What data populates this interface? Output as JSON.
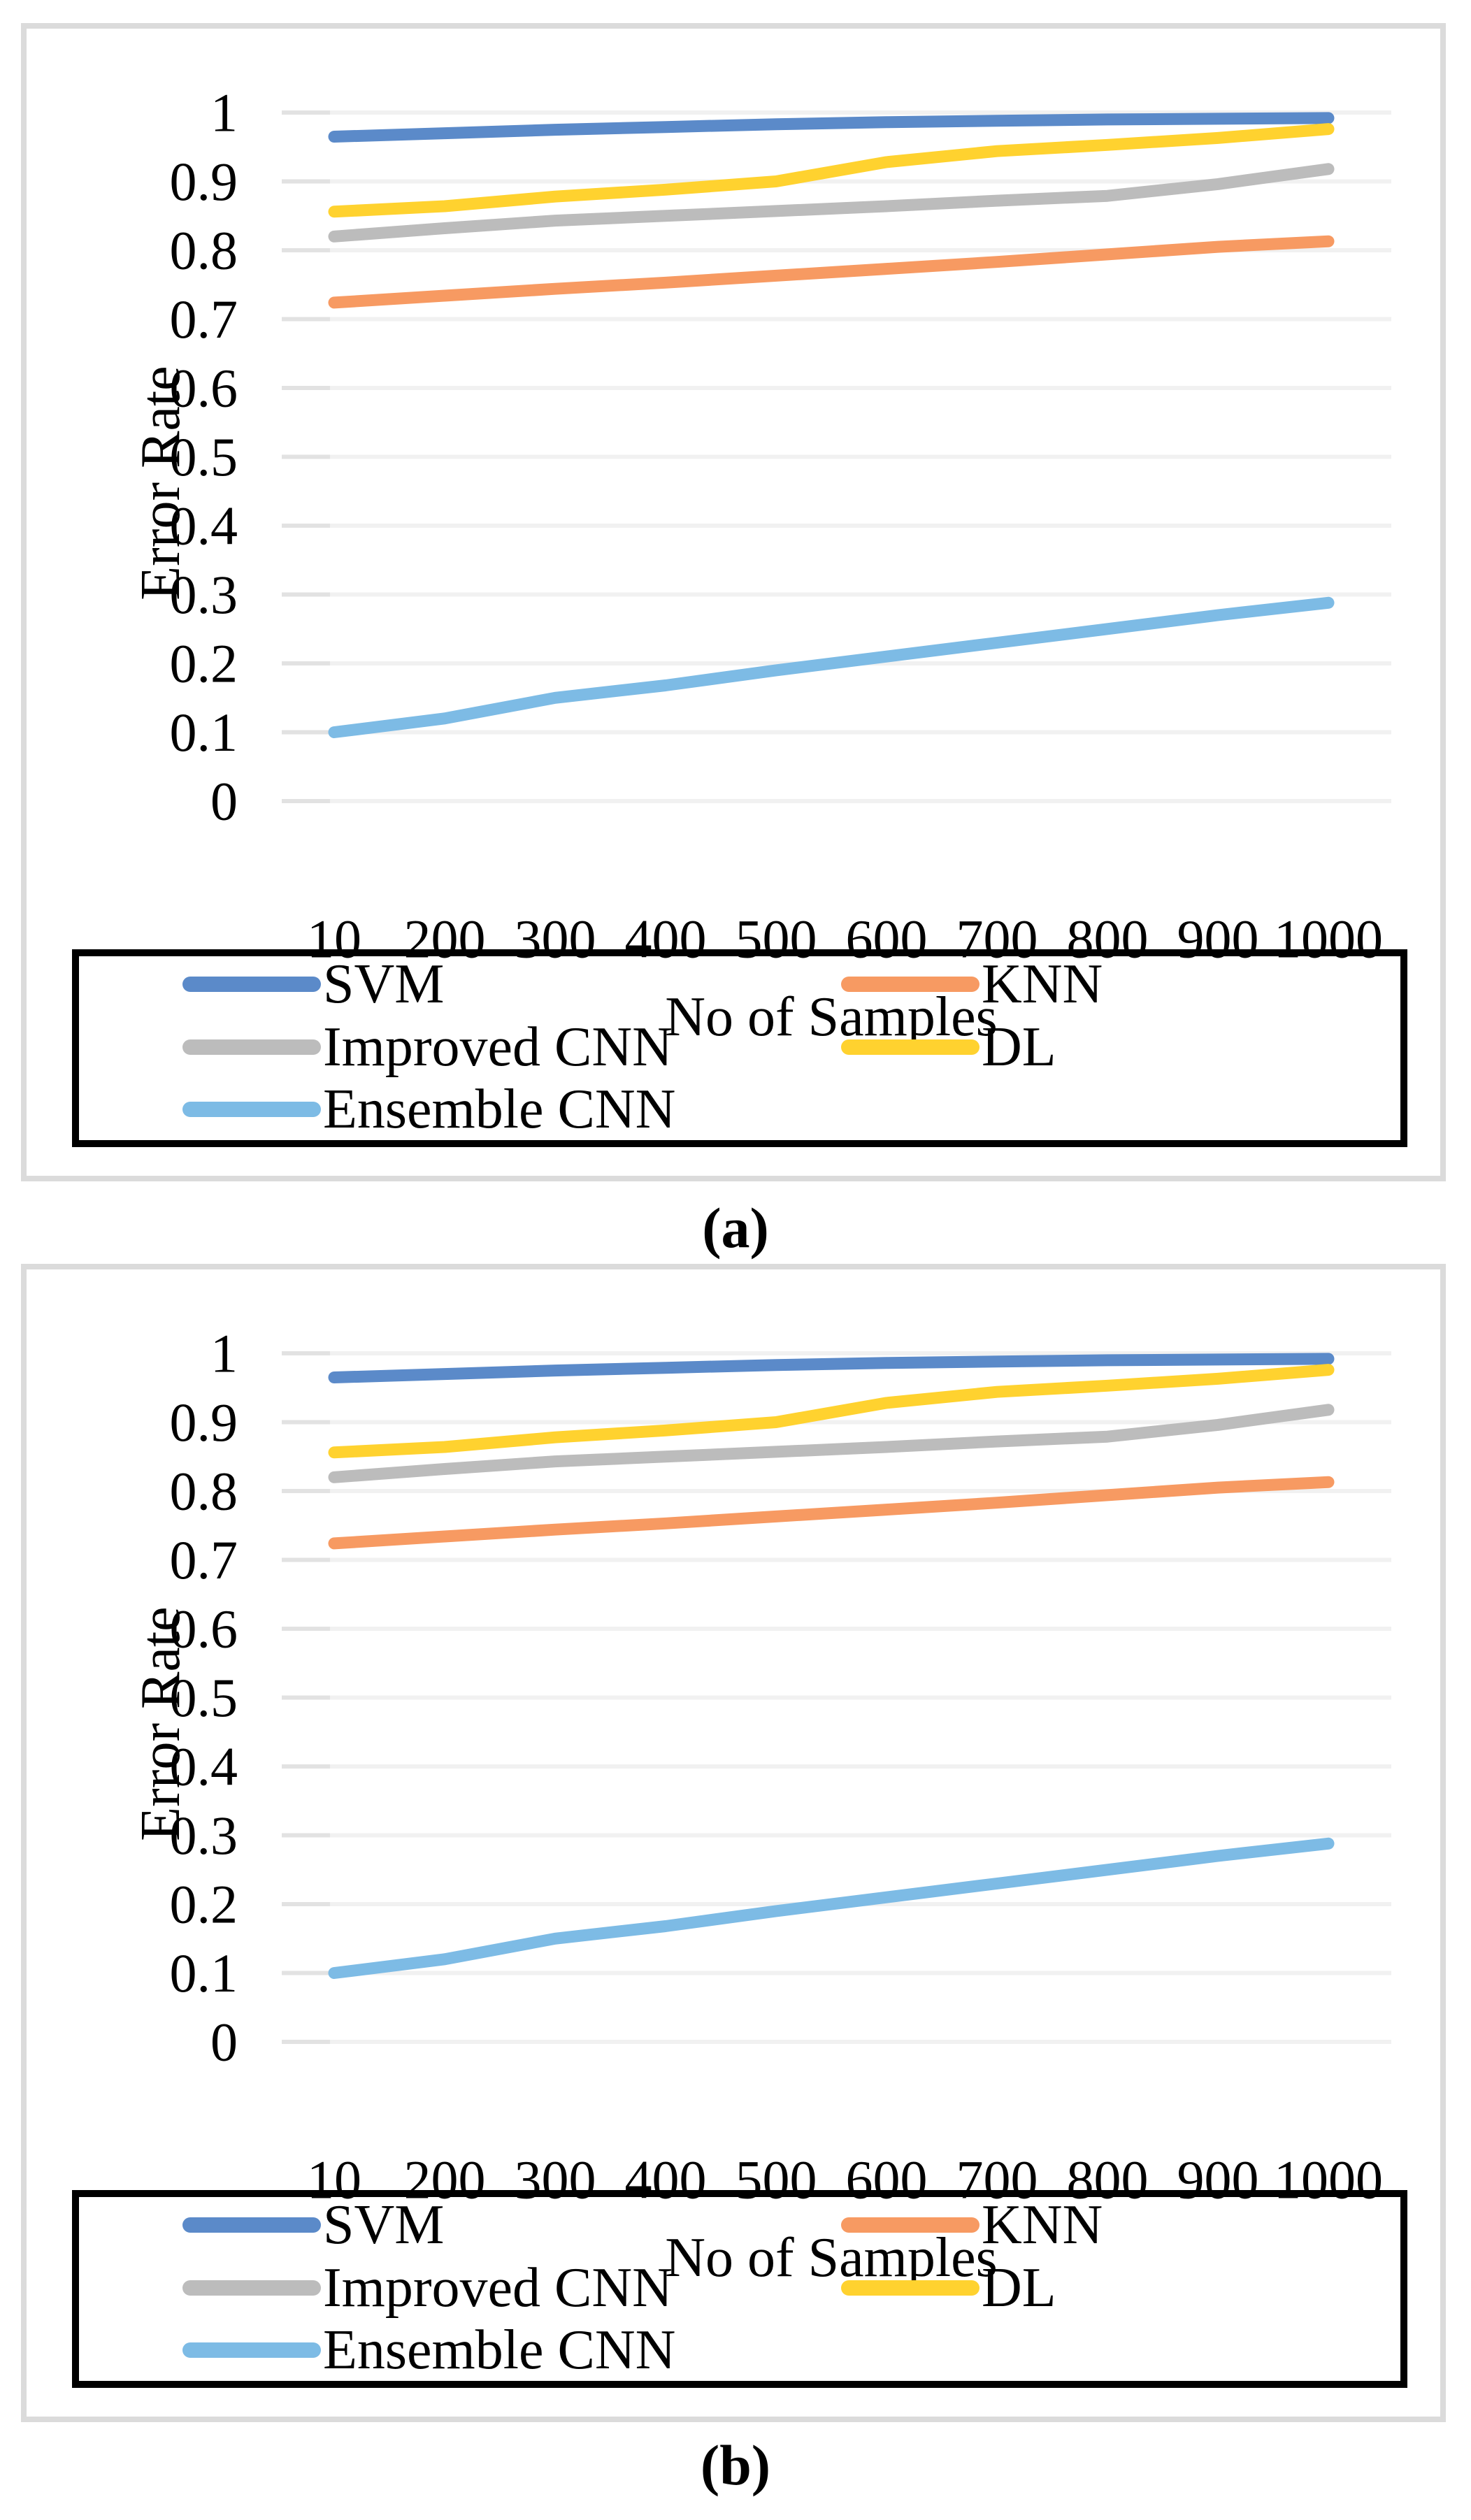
{
  "page": {
    "background": "#ffffff"
  },
  "figure": {
    "panels": [
      {
        "caption": "(a)"
      },
      {
        "caption": "(b)"
      }
    ]
  },
  "chart_data": [
    {
      "type": "line",
      "panel": "a",
      "title": "",
      "xlabel": "No of Samples",
      "ylabel": "Error Rate",
      "x": [
        10,
        200,
        300,
        400,
        500,
        600,
        700,
        800,
        900,
        1000
      ],
      "x_tick_labels": [
        "10",
        "200",
        "300",
        "400",
        "500",
        "600",
        "700",
        "800",
        "900",
        "1000"
      ],
      "x_axis_type": "categorical",
      "ylim": [
        0,
        1
      ],
      "y_ticks": [
        0,
        0.1,
        0.2,
        0.3,
        0.4,
        0.5,
        0.6,
        0.7,
        0.8,
        0.9,
        1
      ],
      "y_tick_labels": [
        "0",
        "0.1",
        "0.2",
        "0.3",
        "0.4",
        "0.5",
        "0.6",
        "0.7",
        "0.8",
        "0.9",
        "1"
      ],
      "grid": "horizontal",
      "gridline_color": "#f1f1f1",
      "legend": {
        "position": "bottom",
        "border": true,
        "columns": [
          [
            "SVM",
            "Improved CNN",
            "Ensemble CNN"
          ],
          [
            "KNN",
            "DL"
          ]
        ]
      },
      "series": [
        {
          "name": "SVM",
          "color": "#5b8ac9",
          "values": [
            0.965,
            0.97,
            0.975,
            0.979,
            0.983,
            0.986,
            0.988,
            0.99,
            0.991,
            0.992
          ]
        },
        {
          "name": "KNN",
          "color": "#f79a62",
          "values": [
            0.724,
            0.734,
            0.744,
            0.753,
            0.763,
            0.773,
            0.783,
            0.794,
            0.805,
            0.813
          ]
        },
        {
          "name": "Improved CNN",
          "color": "#bcbcbc",
          "values": [
            0.82,
            0.832,
            0.843,
            0.85,
            0.857,
            0.864,
            0.872,
            0.879,
            0.896,
            0.918
          ]
        },
        {
          "name": "DL",
          "color": "#ffd22f",
          "values": [
            0.856,
            0.864,
            0.878,
            0.888,
            0.9,
            0.928,
            0.944,
            0.953,
            0.963,
            0.976
          ]
        },
        {
          "name": "Ensemble CNN",
          "color": "#7dbbe5",
          "values": [
            0.1,
            0.12,
            0.15,
            0.168,
            0.19,
            0.21,
            0.23,
            0.25,
            0.27,
            0.288
          ]
        }
      ]
    },
    {
      "type": "line",
      "panel": "b",
      "title": "",
      "xlabel": "No of Samples",
      "ylabel": "Error Rate",
      "x": [
        10,
        200,
        300,
        400,
        500,
        600,
        700,
        800,
        900,
        1000
      ],
      "x_tick_labels": [
        "10",
        "200",
        "300",
        "400",
        "500",
        "600",
        "700",
        "800",
        "900",
        "1000"
      ],
      "x_axis_type": "categorical",
      "ylim": [
        0,
        1
      ],
      "y_ticks": [
        0,
        0.1,
        0.2,
        0.3,
        0.4,
        0.5,
        0.6,
        0.7,
        0.8,
        0.9,
        1
      ],
      "y_tick_labels": [
        "0",
        "0.1",
        "0.2",
        "0.3",
        "0.4",
        "0.5",
        "0.6",
        "0.7",
        "0.8",
        "0.9",
        "1"
      ],
      "grid": "horizontal",
      "gridline_color": "#f1f1f1",
      "legend": {
        "position": "bottom",
        "border": true,
        "columns": [
          [
            "SVM",
            "Improved CNN",
            "Ensemble CNN"
          ],
          [
            "KNN",
            "DL"
          ]
        ]
      },
      "series": [
        {
          "name": "SVM",
          "color": "#5b8ac9",
          "values": [
            0.965,
            0.97,
            0.975,
            0.979,
            0.983,
            0.986,
            0.988,
            0.99,
            0.991,
            0.992
          ]
        },
        {
          "name": "KNN",
          "color": "#f79a62",
          "values": [
            0.724,
            0.734,
            0.744,
            0.753,
            0.763,
            0.773,
            0.783,
            0.794,
            0.805,
            0.813
          ]
        },
        {
          "name": "Improved CNN",
          "color": "#bcbcbc",
          "values": [
            0.82,
            0.832,
            0.843,
            0.85,
            0.857,
            0.864,
            0.872,
            0.879,
            0.896,
            0.918
          ]
        },
        {
          "name": "DL",
          "color": "#ffd22f",
          "values": [
            0.856,
            0.864,
            0.878,
            0.888,
            0.9,
            0.928,
            0.944,
            0.953,
            0.963,
            0.976
          ]
        },
        {
          "name": "Ensemble CNN",
          "color": "#7dbbe5",
          "values": [
            0.1,
            0.12,
            0.15,
            0.168,
            0.19,
            0.21,
            0.23,
            0.25,
            0.27,
            0.288
          ]
        }
      ]
    }
  ]
}
